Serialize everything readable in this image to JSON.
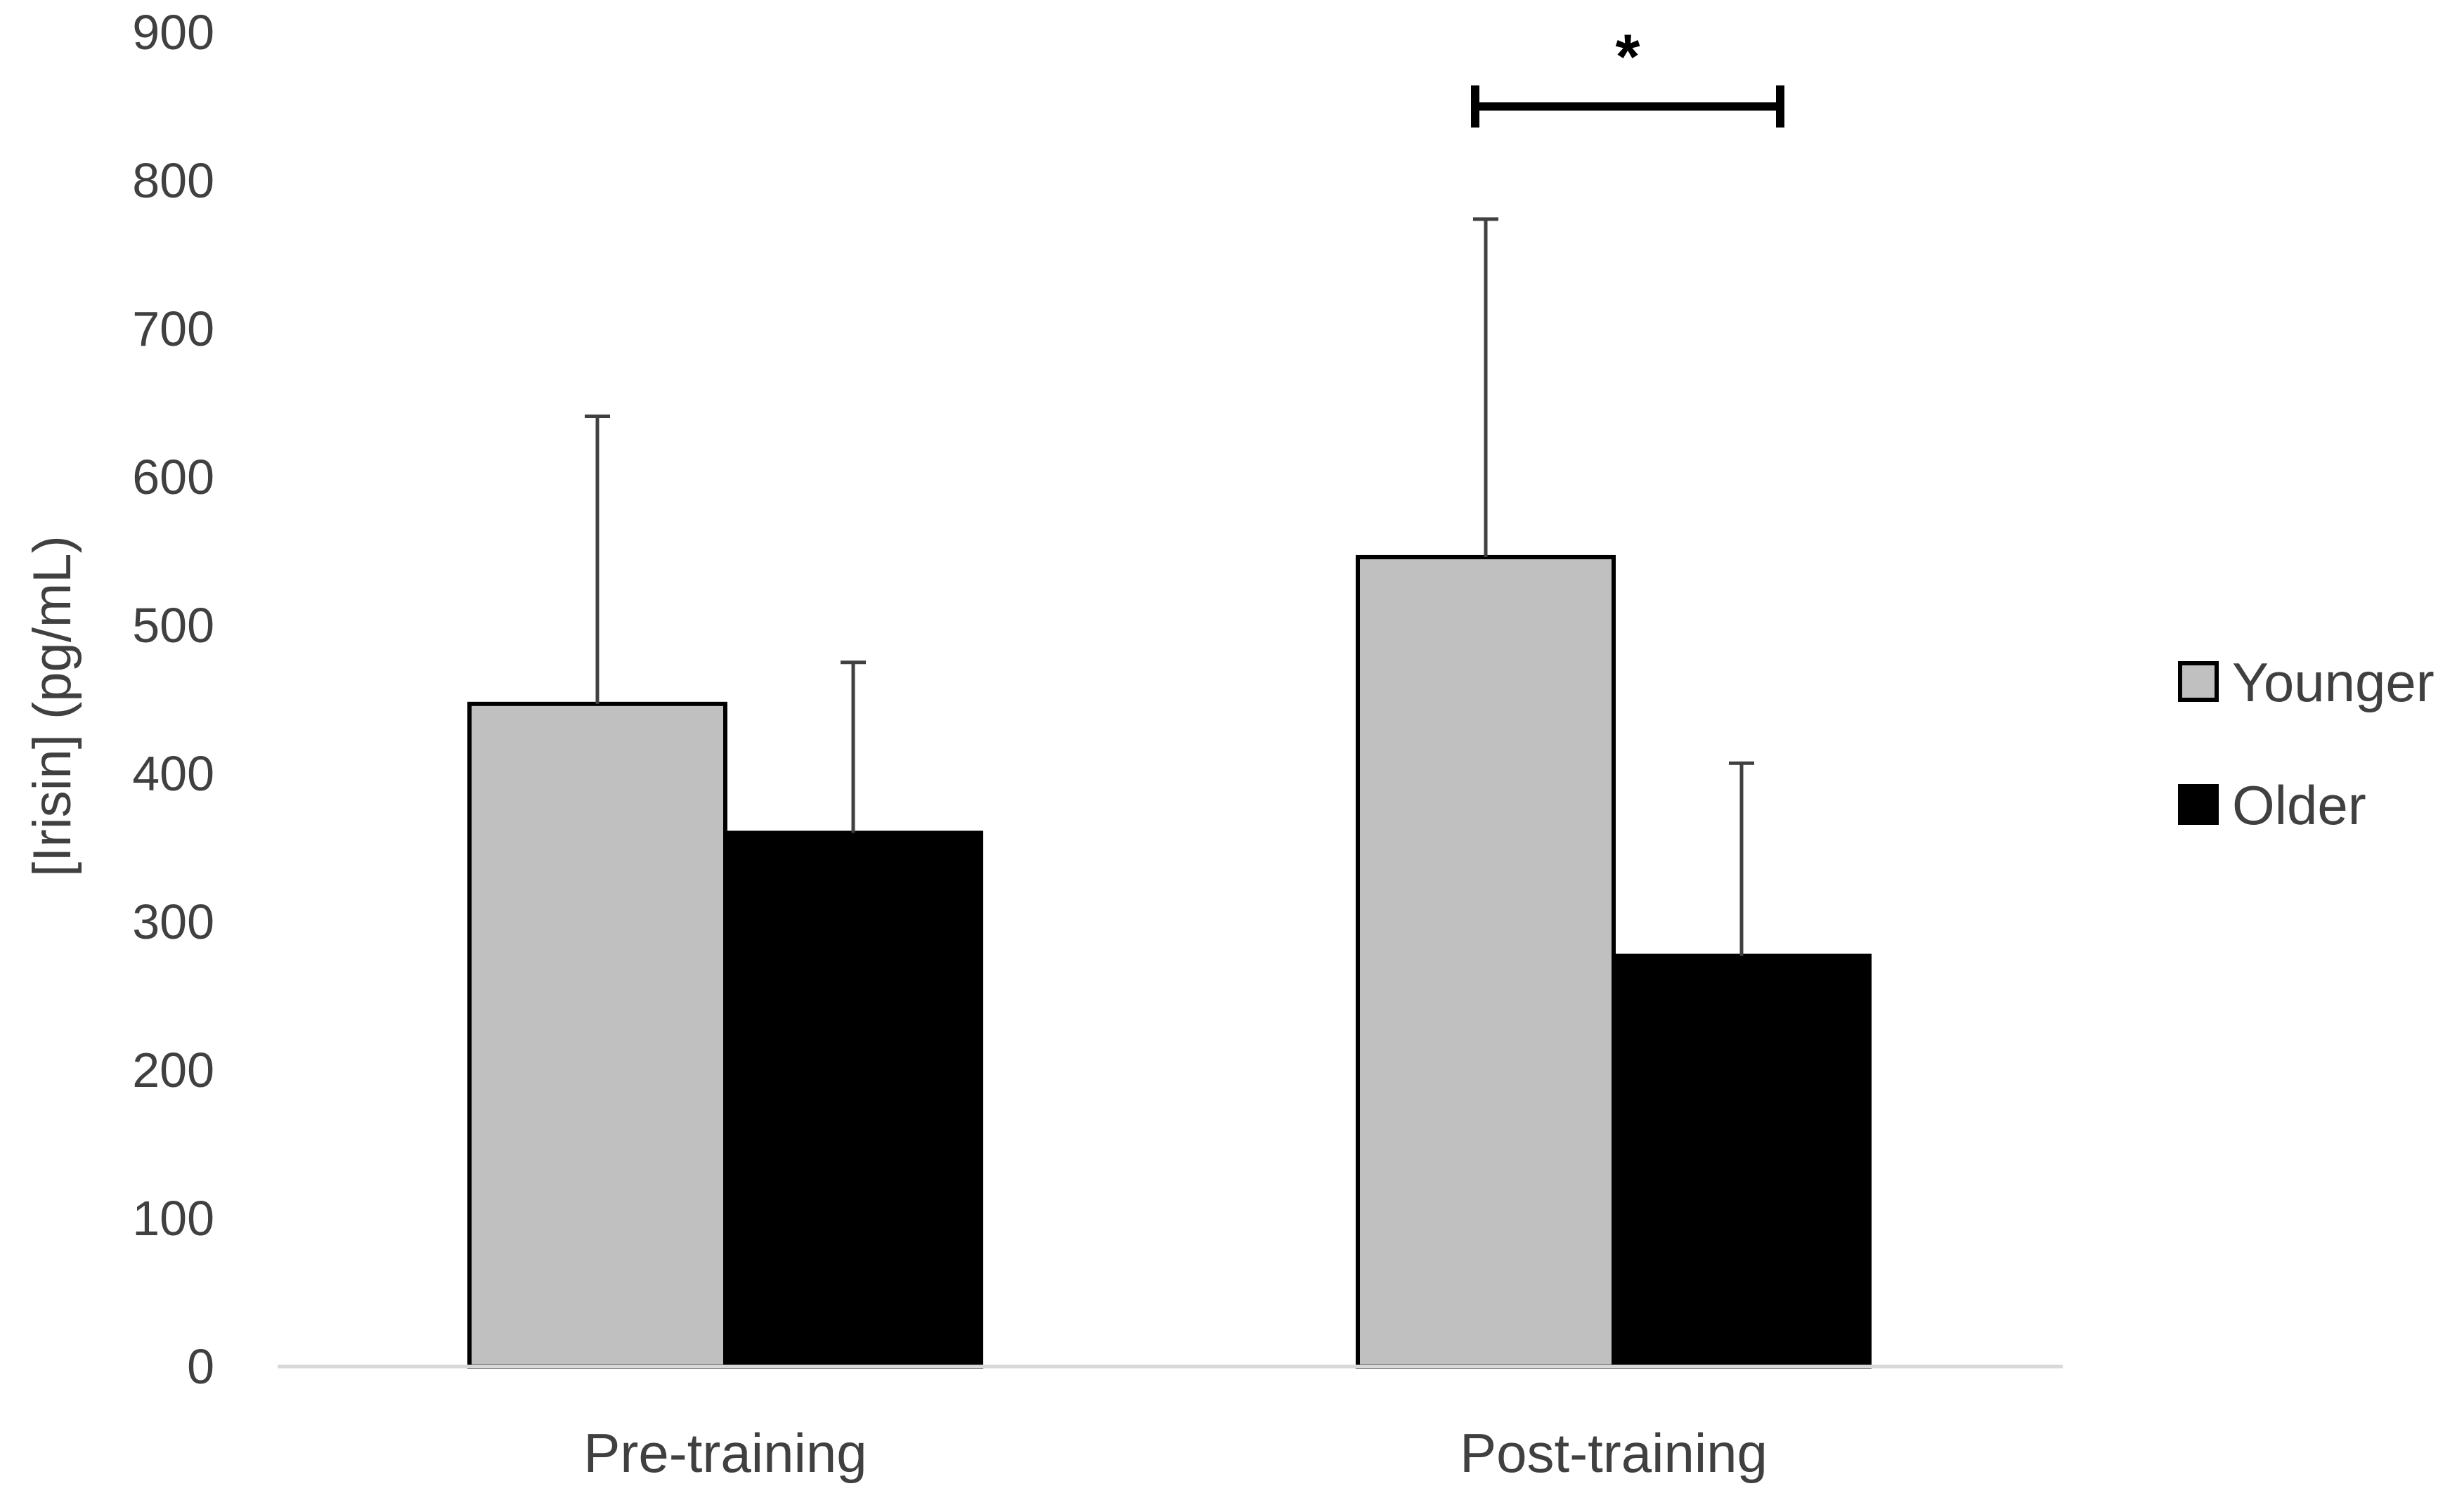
{
  "chart_data": {
    "type": "bar",
    "title": "",
    "xlabel": "",
    "ylabel": "[Irisin] (pg/mL)",
    "categories": [
      "Pre-training",
      "Post-training"
    ],
    "ylim": [
      0,
      900
    ],
    "yticks": [
      0,
      100,
      200,
      300,
      400,
      500,
      600,
      700,
      800,
      900
    ],
    "grid": false,
    "legend_position": "right",
    "series": [
      {
        "name": "Younger",
        "values": [
          447,
          546
        ],
        "error": [
          194,
          228
        ],
        "color": "#c0c0c0"
      },
      {
        "name": "Older",
        "values": [
          360,
          277
        ],
        "error": [
          115,
          130
        ],
        "color": "#000000"
      }
    ],
    "annotations": [
      {
        "type": "significance",
        "text": "*",
        "category": "Post-training",
        "between": [
          "Younger",
          "Older"
        ],
        "level": 850
      }
    ]
  }
}
